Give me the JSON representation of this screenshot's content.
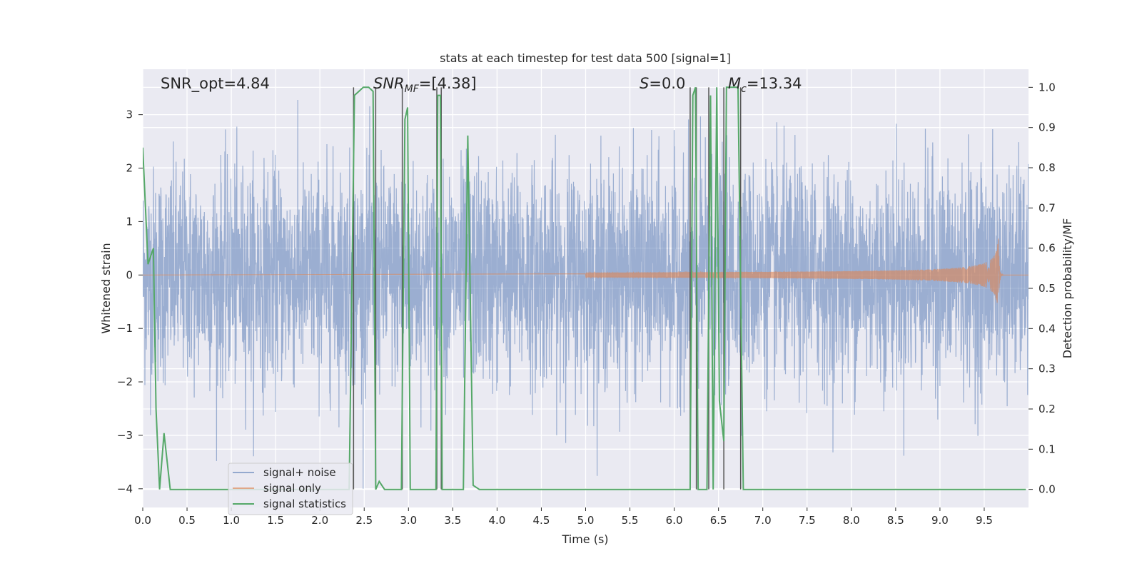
{
  "chart_data": {
    "type": "line",
    "title": "stats at each timestep for test data 500 [signal=1]",
    "xlabel": "Time (s)",
    "ylabel": "Whitened strain",
    "ylabel_right": "Detection probability/MF",
    "xlim": [
      0.0,
      10.0
    ],
    "ylim": [
      -4.35,
      3.85
    ],
    "ylim_right": [
      -0.045,
      1.045
    ],
    "x_ticks": [
      "0.0",
      "0.5",
      "1.0",
      "1.5",
      "2.0",
      "2.5",
      "3.0",
      "3.5",
      "4.0",
      "4.5",
      "5.0",
      "5.5",
      "6.0",
      "6.5",
      "7.0",
      "7.5",
      "8.0",
      "8.5",
      "9.0",
      "9.5"
    ],
    "x_tick_values": [
      0.0,
      0.5,
      1.0,
      1.5,
      2.0,
      2.5,
      3.0,
      3.5,
      4.0,
      4.5,
      5.0,
      5.5,
      6.0,
      6.5,
      7.0,
      7.5,
      8.0,
      8.5,
      9.0,
      9.5
    ],
    "y_ticks": [
      "3",
      "2",
      "1",
      "0",
      "−1",
      "−2",
      "−3",
      "−4"
    ],
    "y_tick_values": [
      3,
      2,
      1,
      0,
      -1,
      -2,
      -3,
      -4
    ],
    "y_ticks_right": [
      "1.0",
      "0.9",
      "0.8",
      "0.7",
      "0.6",
      "0.5",
      "0.4",
      "0.3",
      "0.2",
      "0.1",
      "0.0"
    ],
    "y_tick_values_right": [
      1.0,
      0.9,
      0.8,
      0.7,
      0.6,
      0.5,
      0.4,
      0.3,
      0.2,
      0.1,
      0.0
    ],
    "grid": true,
    "legend_position": "lower-left",
    "annotations": {
      "snr_opt": "SNR_opt=4.84",
      "snr_mf_base": "SNR",
      "snr_mf_sub": "MF",
      "snr_mf_value": "=[4.38]",
      "s_symbol": "S",
      "s_value": "=0.0",
      "mc_base": "M",
      "mc_sub": "c",
      "mc_value": "=13.34"
    },
    "vertical_lines_x": [
      2.38,
      2.63,
      2.93,
      3.32,
      3.37,
      6.18,
      6.25,
      6.39,
      6.56,
      6.75
    ],
    "series": [
      {
        "name": "signal+ noise",
        "color": "#4c72b0",
        "noise_envelope": {
          "typical_amplitude": 1.0,
          "peak_range": [
            -4.0,
            3.3
          ]
        }
      },
      {
        "name": "signal only",
        "color": "#dd8452",
        "chirp": {
          "start_time": 5.0,
          "end_time": 9.66,
          "peak_amplitude": 0.68,
          "merger_time": 9.66
        }
      },
      {
        "name": "signal statistics",
        "color": "#55a868",
        "x": [
          0.0,
          0.06,
          0.12,
          0.15,
          0.19,
          0.24,
          0.31,
          0.35,
          2.33,
          2.39,
          2.44,
          2.49,
          2.55,
          2.6,
          2.63,
          2.67,
          2.73,
          2.78,
          2.92,
          2.96,
          2.99,
          3.02,
          3.05,
          3.08,
          3.31,
          3.33,
          3.36,
          3.38,
          3.41,
          3.45,
          3.62,
          3.67,
          3.73,
          3.8,
          6.15,
          6.18,
          6.21,
          6.24,
          6.27,
          6.32,
          6.37,
          6.41,
          6.44,
          6.48,
          6.51,
          6.56,
          6.59,
          6.62,
          6.67,
          6.72,
          6.78,
          6.82,
          7.0,
          9.97
        ],
        "y": [
          0.85,
          0.56,
          0.6,
          0.2,
          0.0,
          0.14,
          0.0,
          0.0,
          0.0,
          0.98,
          0.99,
          1.0,
          1.0,
          0.99,
          0.0,
          0.02,
          0.0,
          0.0,
          0.0,
          0.92,
          0.95,
          0.0,
          0.0,
          0.0,
          0.0,
          0.98,
          0.98,
          0.0,
          0.0,
          0.0,
          0.0,
          0.88,
          0.01,
          0.0,
          0.0,
          0.0,
          0.98,
          1.0,
          0.0,
          0.0,
          0.0,
          0.98,
          0.0,
          1.0,
          0.22,
          0.12,
          1.0,
          1.0,
          1.0,
          1.0,
          0.0,
          0.0,
          0.0,
          0.0
        ]
      }
    ]
  }
}
